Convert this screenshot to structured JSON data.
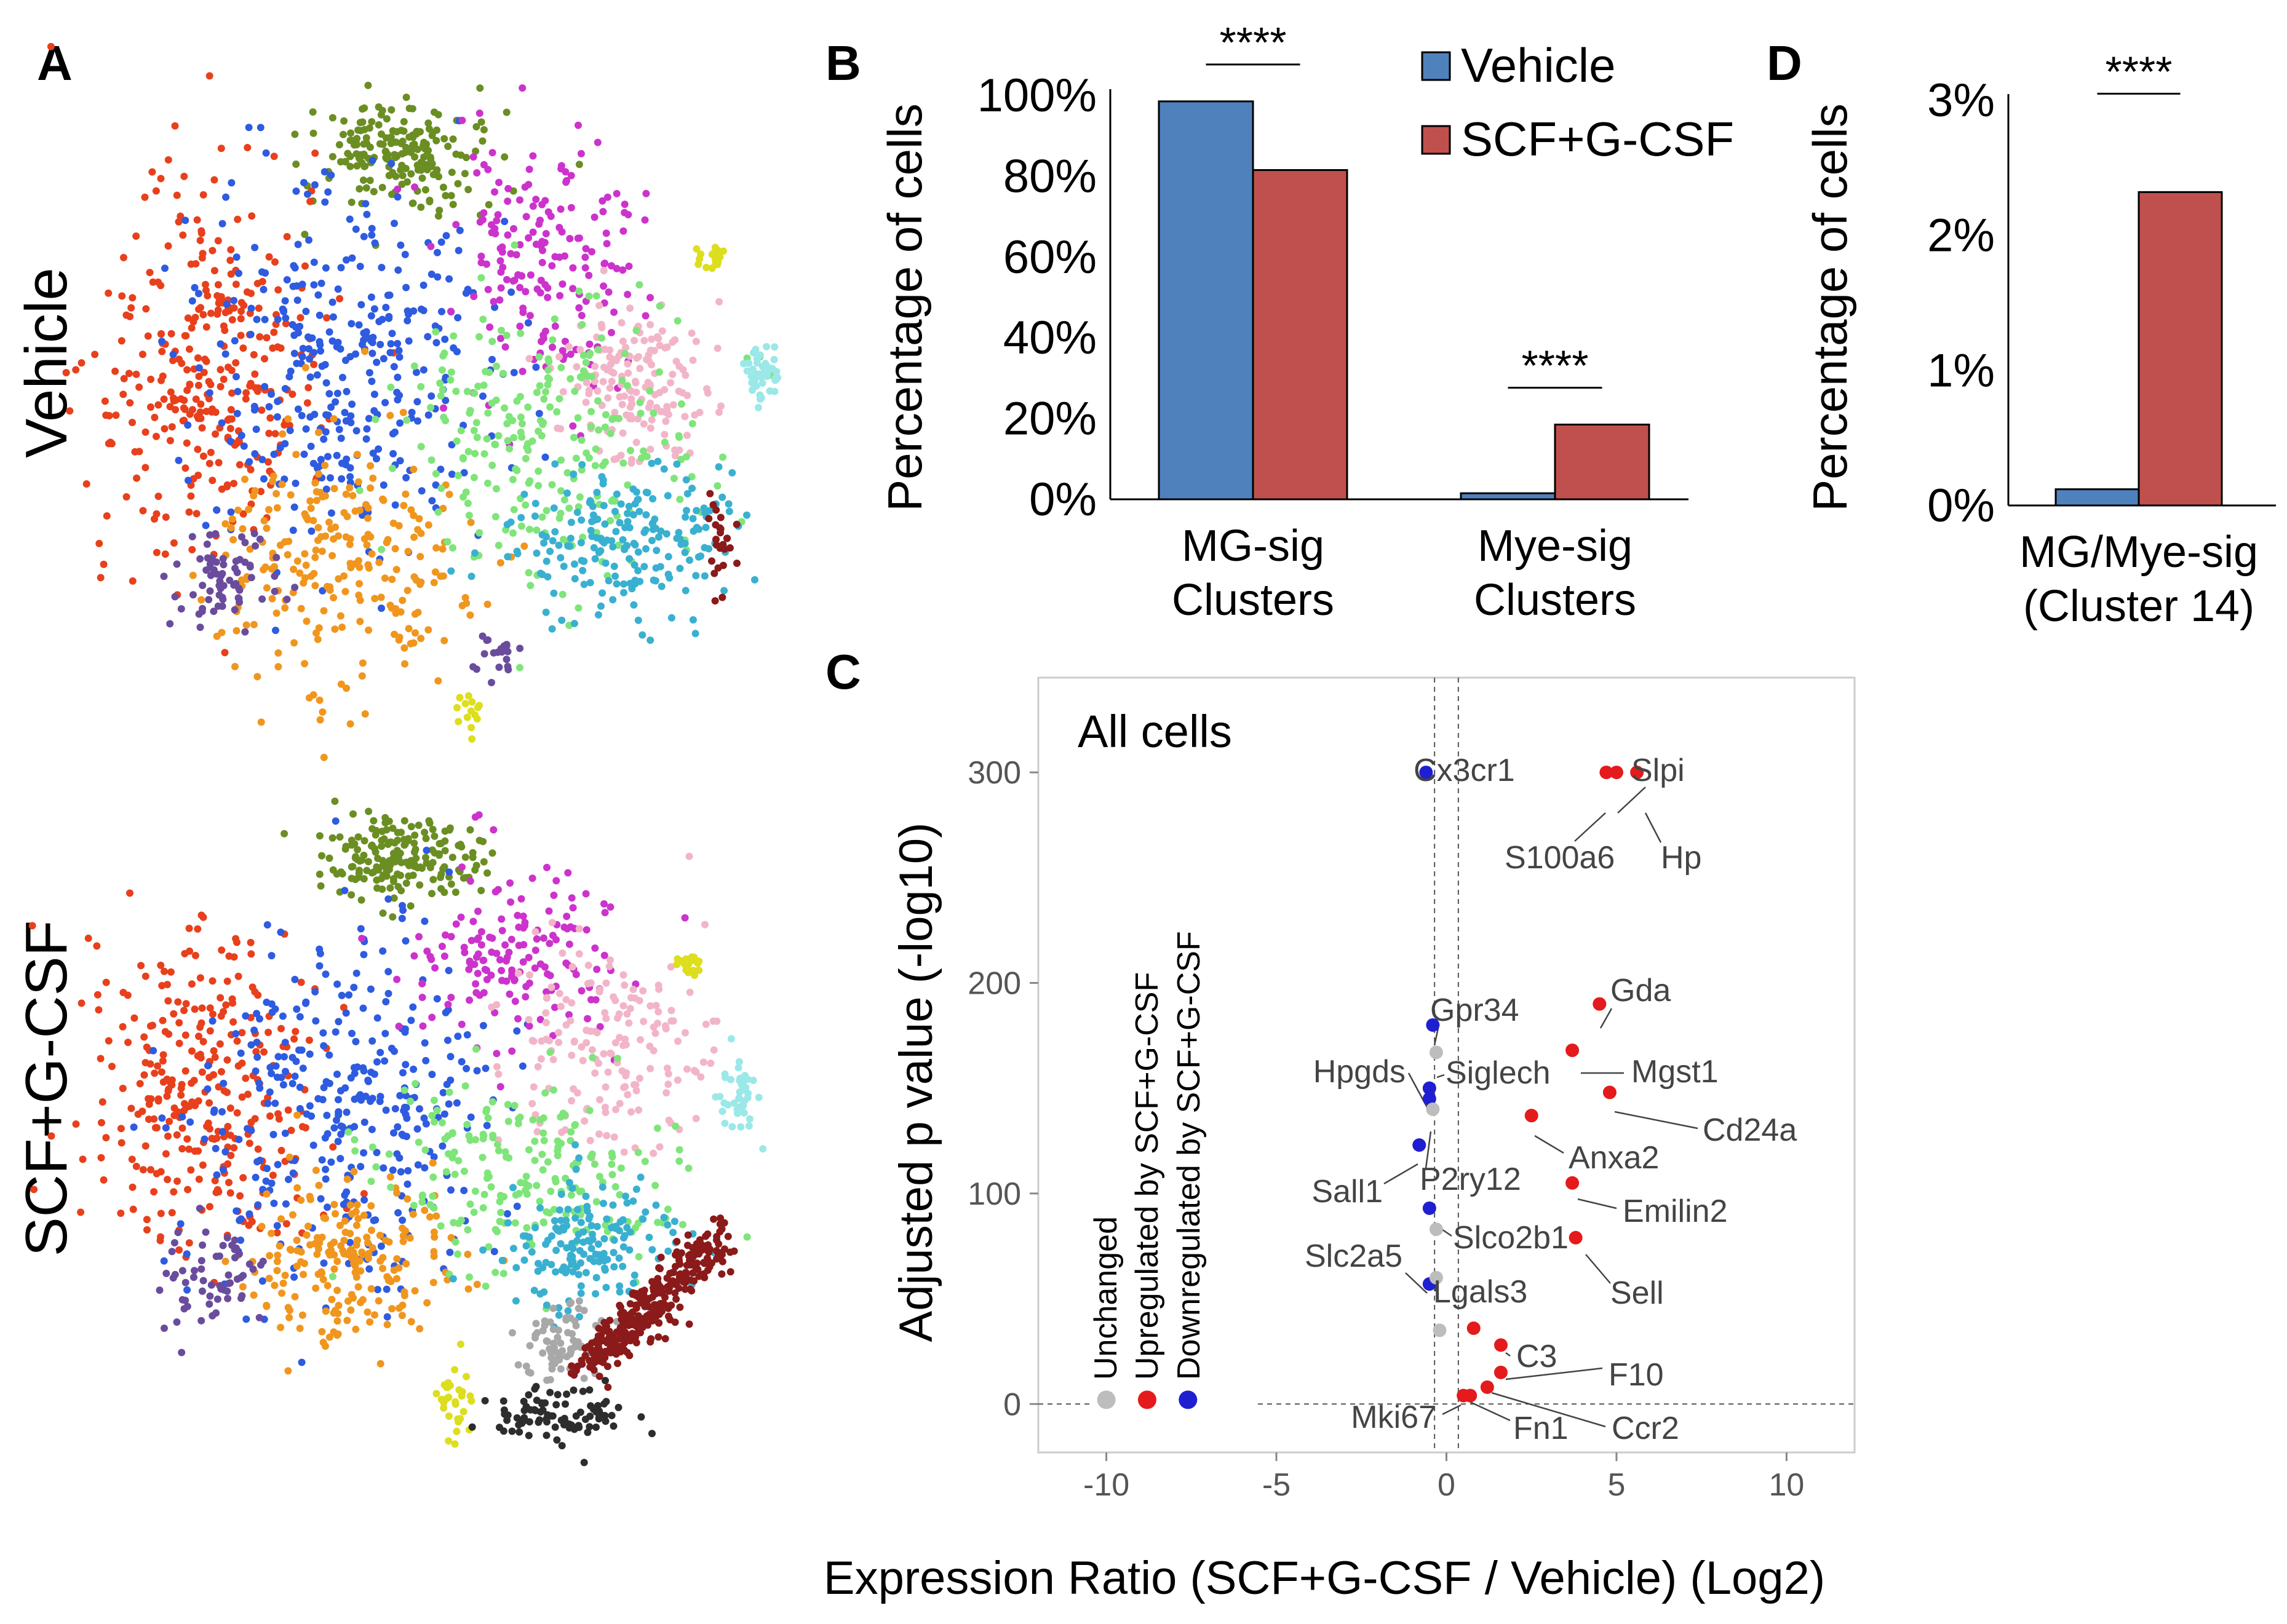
{
  "colors": {
    "vehicle": "#4f81bd",
    "scf": "#c0504d",
    "up": "#e41a1c",
    "down": "#1f1fd1",
    "unchanged": "#bdbdbd",
    "clusters": [
      "#6b8e23",
      "#e8401c",
      "#2e5be0",
      "#cc33cc",
      "#f0961e",
      "#6a4c9c",
      "#f2b5c8",
      "#7fe57a",
      "#3ab0d0",
      "#9be8e8",
      "#ddde1e",
      "#8b1a1a",
      "#a8a8a8",
      "#2d2d2d"
    ]
  },
  "panel_a": {
    "letter": "A",
    "row_labels": [
      "Vehicle",
      "SCF+G-CSF"
    ]
  },
  "chart_data": [
    {
      "panel": "B",
      "type": "bar",
      "categories": [
        "MG-sig Clusters",
        "Mye-sig Clusters"
      ],
      "category_lines": [
        [
          "MG-sig",
          "Clusters"
        ],
        [
          "Mye-sig",
          "Clusters"
        ]
      ],
      "series": [
        {
          "name": "Vehicle",
          "values": [
            98.5,
            1.5
          ]
        },
        {
          "name": "SCF+G-CSF",
          "values": [
            81.5,
            18.5
          ]
        }
      ],
      "ylabel": "Percentage  of cells",
      "ylim": [
        0,
        100
      ],
      "yticks": [
        "0%",
        "20%",
        "40%",
        "60%",
        "80%",
        "100%"
      ],
      "significance": [
        "****",
        "****"
      ],
      "legend_position": "top-right"
    },
    {
      "panel": "D",
      "type": "bar",
      "categories": [
        "MG/Mye-sig (Cluster 14)"
      ],
      "category_lines": [
        [
          "MG/Mye-sig",
          "(Cluster 14)"
        ]
      ],
      "series": [
        {
          "name": "Vehicle",
          "values": [
            0.12
          ]
        },
        {
          "name": "SCF+G-CSF",
          "values": [
            2.32
          ]
        }
      ],
      "ylabel": "Percentage  of cells",
      "ylim": [
        0,
        3
      ],
      "yticks": [
        "0%",
        "1%",
        "2%",
        "3%"
      ],
      "significance": [
        "****"
      ]
    },
    {
      "panel": "C",
      "type": "scatter",
      "title": "All cells",
      "xlabel": "Expression Ratio (SCF+G-CSF / Vehicle) (Log2)",
      "ylabel": "Adjusted p value (-log10)",
      "xlim": [
        -12,
        12
      ],
      "ylim": [
        -23,
        345
      ],
      "xticks": [
        -10,
        -5,
        0,
        5,
        10
      ],
      "yticks": [
        0,
        100,
        200,
        300
      ],
      "thresholds": {
        "x": [
          -0.35,
          0.35
        ],
        "y": 0
      },
      "legend": [
        "Unchanged",
        "Upregulated by SCF+G-CSF",
        "Downregulated by SCF+G-CSF"
      ],
      "legend_points": [
        {
          "x": -10.0,
          "y": 2,
          "class": "unchanged"
        },
        {
          "x": -8.8,
          "y": 2,
          "class": "up"
        },
        {
          "x": -7.6,
          "y": 2,
          "class": "down"
        }
      ],
      "points": [
        {
          "gene": "Cx3cr1",
          "x": -0.6,
          "y": 300,
          "class": "down"
        },
        {
          "gene": "S100a6",
          "x": 4.7,
          "y": 300,
          "class": "up"
        },
        {
          "gene": "Slpi",
          "x": 5.0,
          "y": 300,
          "class": "up"
        },
        {
          "gene": "Hp",
          "x": 5.6,
          "y": 300,
          "class": "up"
        },
        {
          "gene": "Gda",
          "x": 4.5,
          "y": 190,
          "class": "up"
        },
        {
          "gene": "Mgst1",
          "x": 3.7,
          "y": 168,
          "class": "up"
        },
        {
          "gene": "Cd24a",
          "x": 4.8,
          "y": 148,
          "class": "up"
        },
        {
          "gene": "Anxa2",
          "x": 2.5,
          "y": 137,
          "class": "up"
        },
        {
          "gene": "Emilin2",
          "x": 3.7,
          "y": 105,
          "class": "up"
        },
        {
          "gene": "Sell",
          "x": 3.8,
          "y": 79,
          "class": "up"
        },
        {
          "gene": "C3",
          "x": 1.6,
          "y": 28,
          "class": "up"
        },
        {
          "gene": "F10",
          "x": 1.6,
          "y": 15,
          "class": "up"
        },
        {
          "gene": "Ccr2",
          "x": 1.2,
          "y": 8,
          "class": "up"
        },
        {
          "gene": "Fn1",
          "x": 0.7,
          "y": 4,
          "class": "up"
        },
        {
          "gene": "Mki67",
          "x": 0.5,
          "y": 4,
          "class": "up"
        },
        {
          "gene": "",
          "x": 0.8,
          "y": 36,
          "class": "up"
        },
        {
          "gene": "Gpr34",
          "x": -0.4,
          "y": 180,
          "class": "down"
        },
        {
          "gene": "Hpgds",
          "x": -0.5,
          "y": 145,
          "class": "down"
        },
        {
          "gene": "Sall1",
          "x": -0.8,
          "y": 123,
          "class": "down"
        },
        {
          "gene": "Slc2a5",
          "x": -0.5,
          "y": 57,
          "class": "down"
        },
        {
          "gene": "",
          "x": -0.5,
          "y": 93,
          "class": "down"
        },
        {
          "gene": "",
          "x": -0.5,
          "y": 150,
          "class": "down"
        },
        {
          "gene": "Siglech",
          "x": -0.3,
          "y": 167,
          "class": "unchanged"
        },
        {
          "gene": "P2ry12",
          "x": -0.4,
          "y": 140,
          "class": "unchanged"
        },
        {
          "gene": "Slco2b1",
          "x": -0.3,
          "y": 83,
          "class": "unchanged"
        },
        {
          "gene": "Lgals3",
          "x": -0.3,
          "y": 60,
          "class": "unchanged"
        },
        {
          "gene": "",
          "x": -0.2,
          "y": 35,
          "class": "unchanged"
        }
      ]
    }
  ]
}
